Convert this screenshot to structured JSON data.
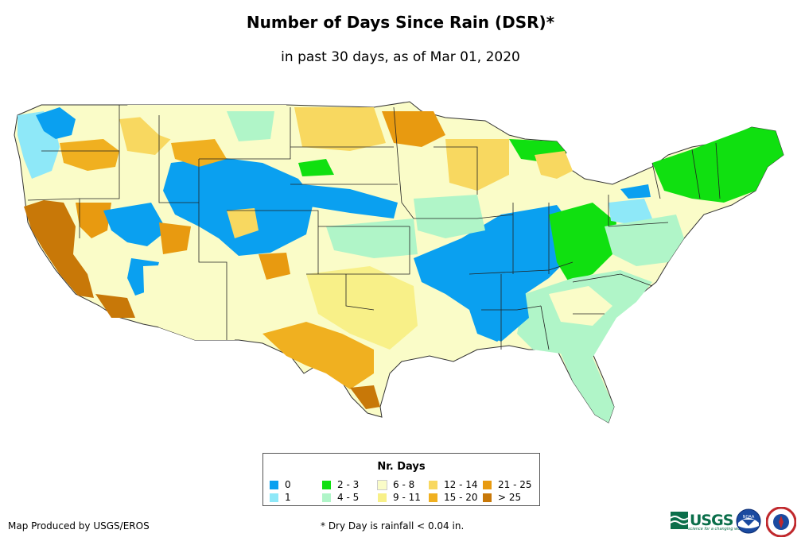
{
  "title": "Number of Days Since Rain (DSR)*",
  "subtitle": "in past 30 days, as of Mar 01, 2020",
  "legend": {
    "title": "Nr. Days",
    "items": [
      {
        "label": "0",
        "color": "#0aa0f0"
      },
      {
        "label": "1",
        "color": "#8ee8f8"
      },
      {
        "label": "2 - 3",
        "color": "#10e010"
      },
      {
        "label": "4 - 5",
        "color": "#b0f5c8"
      },
      {
        "label": "6 - 8",
        "color": "#fafcc8"
      },
      {
        "label": "9 - 11",
        "color": "#f8f088"
      },
      {
        "label": "12 - 14",
        "color": "#f8d860"
      },
      {
        "label": "15 - 20",
        "color": "#f0b020"
      },
      {
        "label": "21 - 25",
        "color": "#e89a10"
      },
      {
        "label": "> 25",
        "color": "#c87808"
      }
    ]
  },
  "producer": "Map Produced by USGS/EROS",
  "footnote": "* Dry Day is rainfall < 0.04 in.",
  "logos": {
    "usgs_text": "USGS",
    "usgs_tagline": "science for a changing world",
    "noaa_text": "NOAA",
    "nws_icon": "nws-seal-icon"
  }
}
